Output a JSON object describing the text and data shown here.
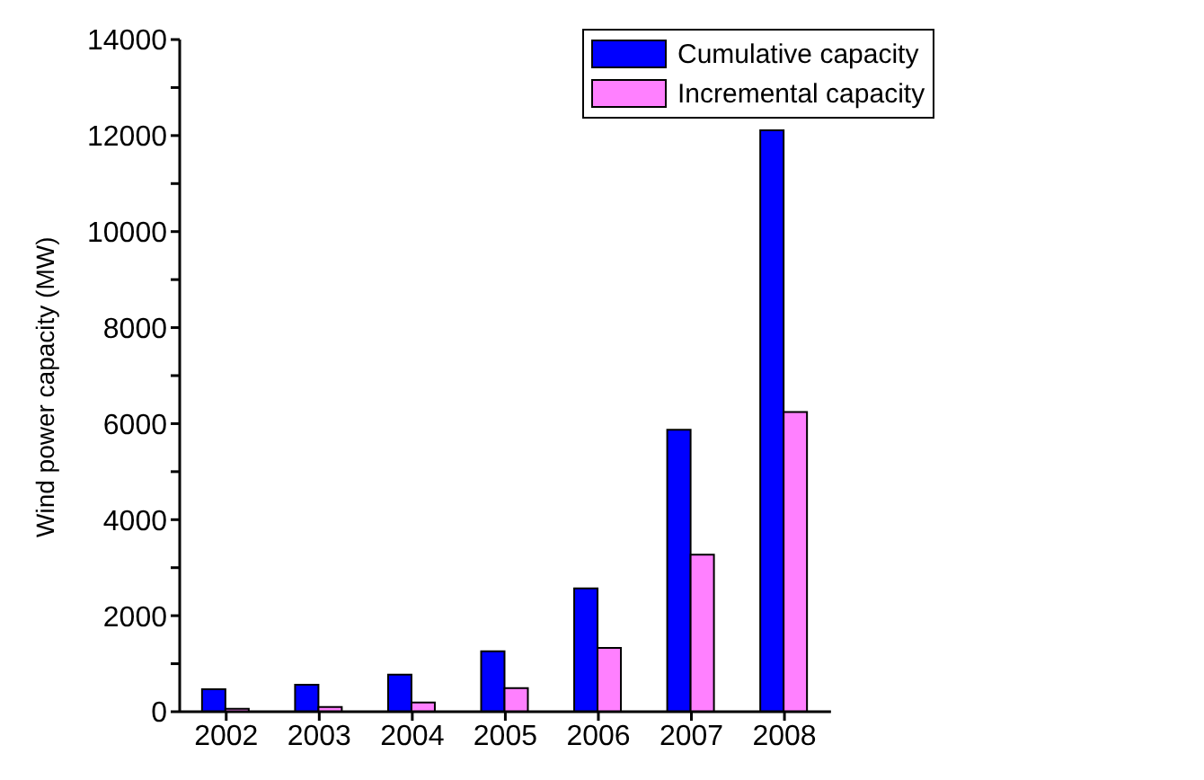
{
  "chart_data": {
    "type": "bar",
    "ylabel": "Wind power capacity (MW)",
    "categories": [
      "2002",
      "2003",
      "2004",
      "2005",
      "2006",
      "2007",
      "2008"
    ],
    "series": [
      {
        "name": "Cumulative capacity",
        "color": "#0000ff",
        "values": [
          470,
          560,
          770,
          1260,
          2570,
          5870,
          12110
        ]
      },
      {
        "name": "Incremental capacity",
        "color": "#ff80ff",
        "values": [
          60,
          100,
          190,
          490,
          1330,
          3270,
          6240
        ]
      }
    ],
    "ylim": [
      0,
      14000
    ],
    "yticks": [
      0,
      {
        "value": 1000,
        "label": null
      },
      2000,
      {
        "value": 3000,
        "label": null
      },
      4000,
      {
        "value": 5000,
        "label": null
      },
      6000,
      {
        "value": 7000,
        "label": null
      },
      8000,
      {
        "value": 9000,
        "label": null
      },
      10000,
      {
        "value": 11000,
        "label": null
      },
      12000,
      {
        "value": 13000,
        "label": null
      },
      14000
    ],
    "legend": "top right",
    "grid": false
  }
}
